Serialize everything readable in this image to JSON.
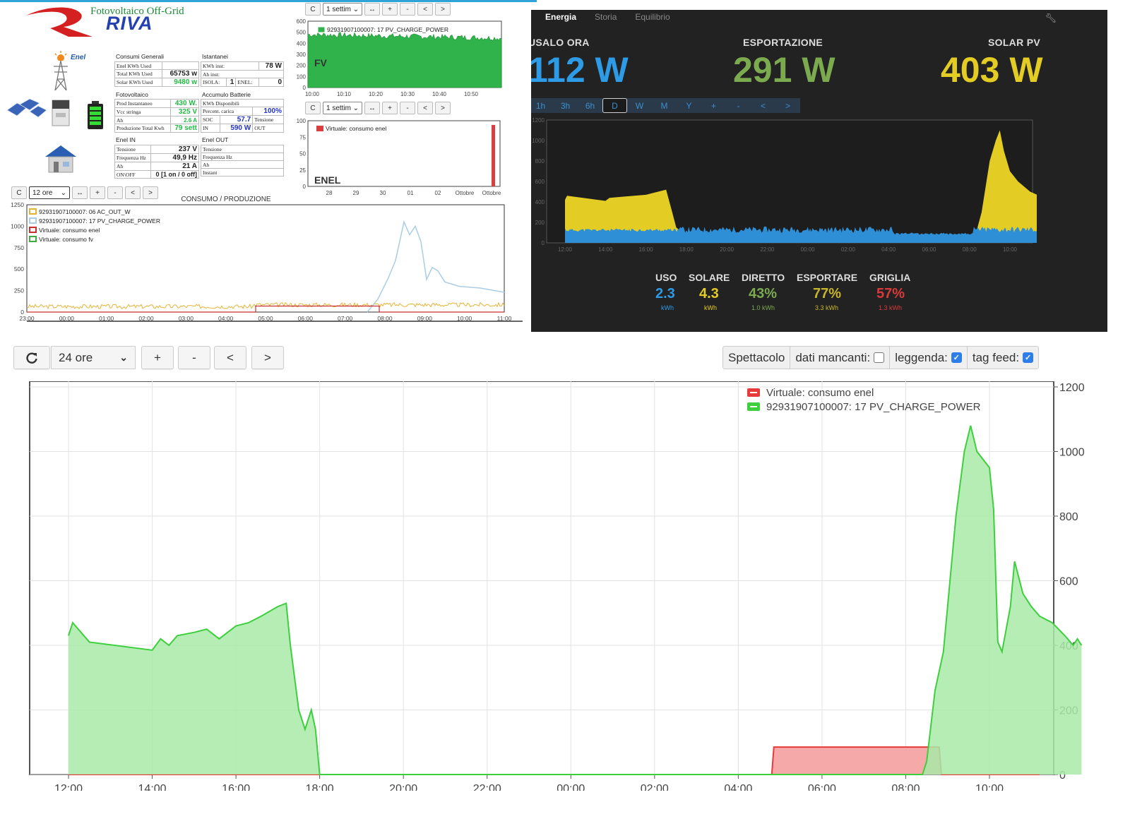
{
  "brand": {
    "subtitle": "Fotovoltaico Off-Grid",
    "name": "RIVA",
    "enel": "Enel",
    "colors": {
      "green": "#1c8a35",
      "blue": "#2540b0",
      "red": "#d42020"
    }
  },
  "consumi": {
    "title": "Consumi Generali",
    "rows": [
      {
        "label": "Enel KWh Used",
        "value": ""
      },
      {
        "label": "Total KWh Used",
        "value": "65753 w"
      },
      {
        "label": "Solar KWh Used",
        "value": "9480 w"
      }
    ]
  },
  "istantanei": {
    "title": "Istantanei",
    "kwh_inst_label": "KWh inst:",
    "kwh_inst_value": "78 W",
    "ah_inst_label": "Ah inst:",
    "isola_label": "ISOLA:",
    "isola_value": "1",
    "enel_label": "ENEL:",
    "enel_value": "0"
  },
  "fotovoltaico": {
    "title": "Fotovoltaico",
    "rows": [
      {
        "label": "Prod Instantaneo",
        "value": "430 W."
      },
      {
        "label": "Vcc stringa",
        "value": "325 V"
      },
      {
        "label": "Ah",
        "value": "2.6 A"
      },
      {
        "label": "Produzione Total Kwh",
        "value": "79 sett"
      }
    ]
  },
  "batterie": {
    "title": "Accumulo Batterie",
    "kwh_disp": "KWh Disponibili",
    "percent_label": "Percent. carica",
    "percent_value": "100%",
    "soc_label": "SOC",
    "soc_value": "57.7",
    "tensione_label": "Tensione",
    "in_label": "IN",
    "in_value": "590 W",
    "out_label": "OUT"
  },
  "enel_in": {
    "title": "Enel IN",
    "rows": [
      {
        "label": "Tensione",
        "value": "237 V"
      },
      {
        "label": "Frequenza Hz",
        "value": "49,9 Hz"
      },
      {
        "label": "Ah",
        "value": "21 A"
      },
      {
        "label": "ON\\OFF",
        "value": "0 [1 on / 0 off]"
      }
    ]
  },
  "enel_out": {
    "title": "Enel OUT",
    "rows": [
      {
        "label": "Tensione"
      },
      {
        "label": "Frequenza Hz"
      },
      {
        "label": "Ah"
      },
      {
        "label": "Instant"
      }
    ]
  },
  "mini_controls": {
    "refresh": "C",
    "range_week": "1 settim",
    "range_12": "12 ore",
    "expand": "↔",
    "plus": "+",
    "minus": "-",
    "prev": "<",
    "next": ">"
  },
  "fv_chart": {
    "label": "FV",
    "legend": "92931907100007: 17 PV_CHARGE_POWER",
    "y_ticks": [
      "600",
      "500",
      "400",
      "300",
      "200",
      "100",
      "0"
    ],
    "x_ticks": [
      "10:00",
      "10:10",
      "10:20",
      "10:30",
      "10:40",
      "10:50"
    ],
    "color": "#2fb34a"
  },
  "enel_chart": {
    "label": "ENEL",
    "legend": "Virtuale: consumo enel",
    "y_ticks": [
      "100",
      "75",
      "50",
      "25",
      "0"
    ],
    "x_ticks": [
      "28",
      "29",
      "30",
      "01",
      "02",
      "Ottobre",
      "Ottobre"
    ],
    "color": "#d84040"
  },
  "consumo_chart": {
    "title": "CONSUMO / PRODUZIONE",
    "legend": [
      {
        "name": "92931907100007: 06 AC_OUT_W",
        "color": "#e6b435"
      },
      {
        "name": "92931907100007: 17 PV_CHARGE_POWER",
        "color": "#a9cde8"
      },
      {
        "name": "Virtuale: consumo enel",
        "color": "#c63030"
      },
      {
        "name": "Virtuale: consumo fv",
        "color": "#3faa3f"
      }
    ],
    "y_ticks": [
      "1250",
      "1000",
      "750",
      "500",
      "250",
      "0"
    ],
    "x_ticks": [
      "23:00",
      "00:00",
      "01:00",
      "02:00",
      "03:00",
      "04:00",
      "05:00",
      "06:00",
      "07:00",
      "08:00",
      "09:00",
      "10:00",
      "11:00"
    ]
  },
  "dark": {
    "tabs": [
      "Energia",
      "Storia",
      "Equilibrio"
    ],
    "kpis": [
      {
        "label": "USALO ORA",
        "value": "112 W",
        "color": "#2e9be6"
      },
      {
        "label": "ESPORTAZIONE",
        "value": "291 W",
        "color": "#7cab4f"
      },
      {
        "label": "SOLAR PV",
        "value": "403 W",
        "color": "#e3cc23"
      }
    ],
    "ranges": [
      "1h",
      "3h",
      "6h",
      "D",
      "W",
      "M",
      "Y",
      "+",
      "-",
      "<",
      ">"
    ],
    "y_ticks": [
      "1200",
      "1000",
      "800",
      "600",
      "400",
      "200",
      "0"
    ],
    "x_ticks": [
      "12:00",
      "14:00",
      "16:00",
      "18:00",
      "20:00",
      "22:00",
      "00:00",
      "02:00",
      "04:00",
      "06:00",
      "08:00",
      "10:00"
    ],
    "stats": [
      {
        "label": "USO",
        "value": "2.3",
        "sub": "kWh",
        "color": "#2e9be6"
      },
      {
        "label": "SOLARE",
        "value": "4.3",
        "sub": "kWh",
        "color": "#e3cc23"
      },
      {
        "label": "DIRETTO",
        "value": "43%",
        "sub": "1.0 kWh",
        "color": "#7cab4f"
      },
      {
        "label": "ESPORTARE",
        "value": "77%",
        "sub": "3.3 kWh",
        "color": "#c8b62a"
      },
      {
        "label": "GRIGLIA",
        "value": "57%",
        "sub": "1.3 kWh",
        "color": "#d83a3a"
      }
    ]
  },
  "bottom": {
    "refresh_icon": "refresh-icon",
    "range": "24 ore",
    "plus": "+",
    "minus": "-",
    "prev": "<",
    "next": ">",
    "opt_show": "Spettacolo",
    "opt_missing": "dati mancanti:",
    "opt_legend": "leggenda:",
    "opt_tag": "tag feed:",
    "missing_checked": false,
    "legend_checked": true,
    "tag_checked": true
  },
  "chart_data": {
    "type": "area",
    "y_ticks": [
      "1200",
      "1000",
      "800",
      "600",
      "400",
      "200",
      "0"
    ],
    "x_ticks": [
      "12:00",
      "14:00",
      "16:00",
      "18:00",
      "20:00",
      "22:00",
      "00:00",
      "02:00",
      "04:00",
      "06:00",
      "08:00",
      "10:00"
    ],
    "ylim": [
      0,
      1200
    ],
    "grid": true,
    "legend_position": "top-right",
    "series": [
      {
        "name": "Virtuale: consumo enel",
        "color": "#e83a3a",
        "fill": "#f5a9a9",
        "points": [
          [
            12.0,
            0
          ],
          [
            28.8,
            0
          ],
          [
            28.85,
            85
          ],
          [
            32.8,
            85
          ],
          [
            32.85,
            0
          ],
          [
            35.2,
            0
          ]
        ]
      },
      {
        "name": "92931907100007: 17 PV_CHARGE_POWER",
        "color": "#3ecf3e",
        "fill": "#a8eaa8",
        "points": [
          [
            12.0,
            430
          ],
          [
            12.1,
            470
          ],
          [
            12.3,
            440
          ],
          [
            12.5,
            410
          ],
          [
            14.0,
            385
          ],
          [
            14.2,
            420
          ],
          [
            14.4,
            400
          ],
          [
            14.6,
            430
          ],
          [
            15.0,
            440
          ],
          [
            15.3,
            450
          ],
          [
            15.6,
            420
          ],
          [
            16.0,
            460
          ],
          [
            16.3,
            470
          ],
          [
            16.6,
            490
          ],
          [
            17.0,
            520
          ],
          [
            17.2,
            530
          ],
          [
            17.3,
            400
          ],
          [
            17.5,
            200
          ],
          [
            17.65,
            140
          ],
          [
            17.8,
            200
          ],
          [
            17.9,
            140
          ],
          [
            18.0,
            0
          ],
          [
            32.4,
            0
          ],
          [
            32.5,
            40
          ],
          [
            32.7,
            260
          ],
          [
            32.9,
            380
          ],
          [
            33.2,
            800
          ],
          [
            33.4,
            1000
          ],
          [
            33.55,
            1080
          ],
          [
            33.7,
            1000
          ],
          [
            34.0,
            950
          ],
          [
            34.1,
            820
          ],
          [
            34.2,
            410
          ],
          [
            34.3,
            380
          ],
          [
            34.5,
            520
          ],
          [
            34.6,
            660
          ],
          [
            34.8,
            560
          ],
          [
            35.0,
            520
          ],
          [
            35.2,
            490
          ],
          [
            35.5,
            470
          ],
          [
            35.8,
            430
          ],
          [
            36.0,
            400
          ],
          [
            36.1,
            420
          ],
          [
            36.2,
            400
          ]
        ]
      }
    ]
  }
}
